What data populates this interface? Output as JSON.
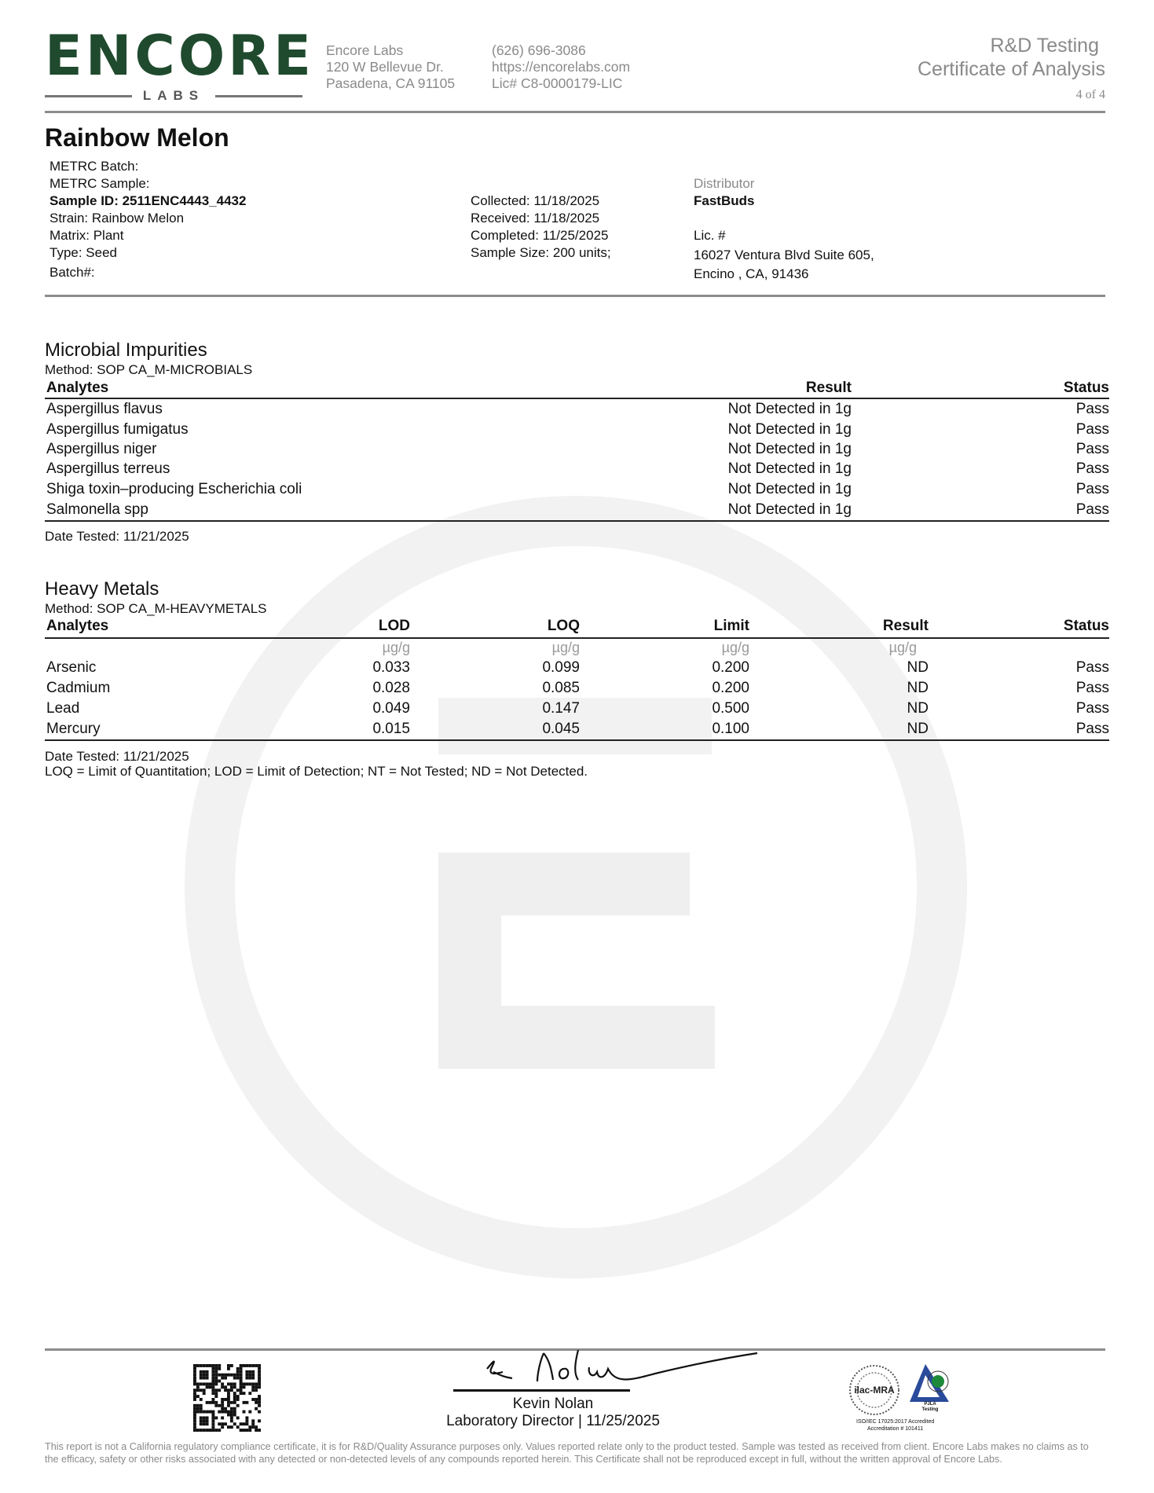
{
  "header": {
    "logo": {
      "word": "ENCORE",
      "sub": "LABS",
      "color": "#1f4a2e"
    },
    "lab": [
      "Encore Labs",
      "120 W Bellevue Dr.",
      "Pasadena, CA 91105"
    ],
    "contact": [
      "(626) 696-3086",
      "https://encorelabs.com",
      "Lic# C8-0000179-LIC"
    ],
    "title1": "R&D Testing",
    "title2": "Certificate of Analysis",
    "page": "4 of 4"
  },
  "product": {
    "name": "Rainbow Melon",
    "left": [
      "METRC Batch:",
      "METRC Sample:",
      "Sample ID: 2511ENC4443_4432",
      "Strain: Rainbow Melon",
      "Matrix: Plant",
      "Type: Seed",
      "Batch#:"
    ],
    "middle": [
      "Collected: 11/18/2025",
      "Received: 11/18/2025",
      "Completed: 11/25/2025",
      "Sample Size: 200 units;"
    ],
    "distributor_label": "Distributor",
    "distributor": "FastBuds",
    "lic": "Lic. #",
    "address": [
      "16027 Ventura Blvd Suite 605,",
      "Encino , CA, 91436"
    ]
  },
  "microbial": {
    "title": "Microbial Impurities",
    "method": "Method: SOP CA_M-MICROBIALS",
    "headers": [
      "Analytes",
      "Result",
      "Status"
    ],
    "rows": [
      [
        "Aspergillus flavus",
        "Not Detected in 1g",
        "Pass"
      ],
      [
        "Aspergillus fumigatus",
        "Not Detected in 1g",
        "Pass"
      ],
      [
        "Aspergillus niger",
        "Not Detected in 1g",
        "Pass"
      ],
      [
        "Aspergillus terreus",
        "Not Detected in 1g",
        "Pass"
      ],
      [
        "Shiga toxin–producing Escherichia coli",
        "Not Detected in 1g",
        "Pass"
      ],
      [
        "Salmonella spp",
        "Not Detected in 1g",
        "Pass"
      ]
    ],
    "date": "Date Tested: 11/21/2025"
  },
  "metals": {
    "title": "Heavy Metals",
    "method": "Method: SOP CA_M-HEAVYMETALS",
    "headers": [
      "Analytes",
      "LOD",
      "LOQ",
      "Limit",
      "Result",
      "Status"
    ],
    "units": [
      "",
      "µg/g",
      "µg/g",
      "µg/g",
      "µg/g",
      ""
    ],
    "rows": [
      [
        "Arsenic",
        "0.033",
        "0.099",
        "0.200",
        "ND",
        "Pass"
      ],
      [
        "Cadmium",
        "0.028",
        "0.085",
        "0.200",
        "ND",
        "Pass"
      ],
      [
        "Lead",
        "0.049",
        "0.147",
        "0.500",
        "ND",
        "Pass"
      ],
      [
        "Mercury",
        "0.015",
        "0.045",
        "0.100",
        "ND",
        "Pass"
      ]
    ],
    "date": "Date Tested: 11/21/2025",
    "legend": "LOQ = Limit of Quantitation; LOD = Limit of Detection; NT = Not Tested; ND = Not Detected."
  },
  "footer": {
    "signer": "Kevin Nolan",
    "role": "Laboratory Director | 11/25/2025",
    "accreditation_logos": [
      "ilac-MRA",
      "PJLA Testing",
      "ISO/IEC 17025:2017 Accredited",
      "Accreditation # 101411"
    ],
    "disclaimer": "This report is not a California regulatory compliance certificate, it is for R&D/Quality Assurance purposes only. Values reported relate only to the product tested. Sample was tested as received from client. Encore Labs makes no claims as to the efficacy, safety or other risks associated with any detected or non-detected levels of any compounds reported herein. This Certificate shall not be reproduced except in full, without the written approval of Encore Labs."
  }
}
